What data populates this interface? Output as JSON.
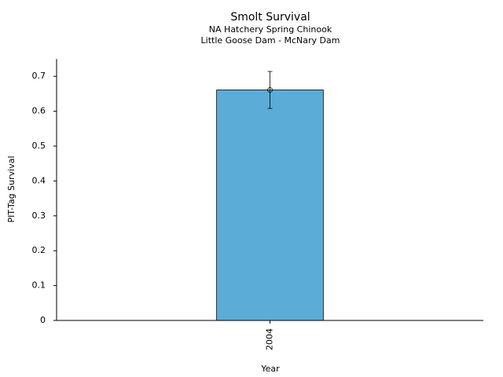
{
  "chart_data": {
    "type": "bar",
    "title": "Smolt Survival",
    "subtitle_lines": [
      "NA Hatchery Spring Chinook",
      "Little Goose Dam - McNary Dam"
    ],
    "x_label": "Year",
    "y_label": "PIT-Tag Survival",
    "categories": [
      "2004"
    ],
    "values": [
      0.661
    ],
    "errors": [
      0.053
    ],
    "color": "#5bacd7",
    "ylim": [
      0,
      0.75
    ],
    "yticks": [
      0,
      0.1,
      0.2,
      0.3,
      0.4,
      0.5,
      0.6,
      0.7
    ],
    "grid": false
  }
}
